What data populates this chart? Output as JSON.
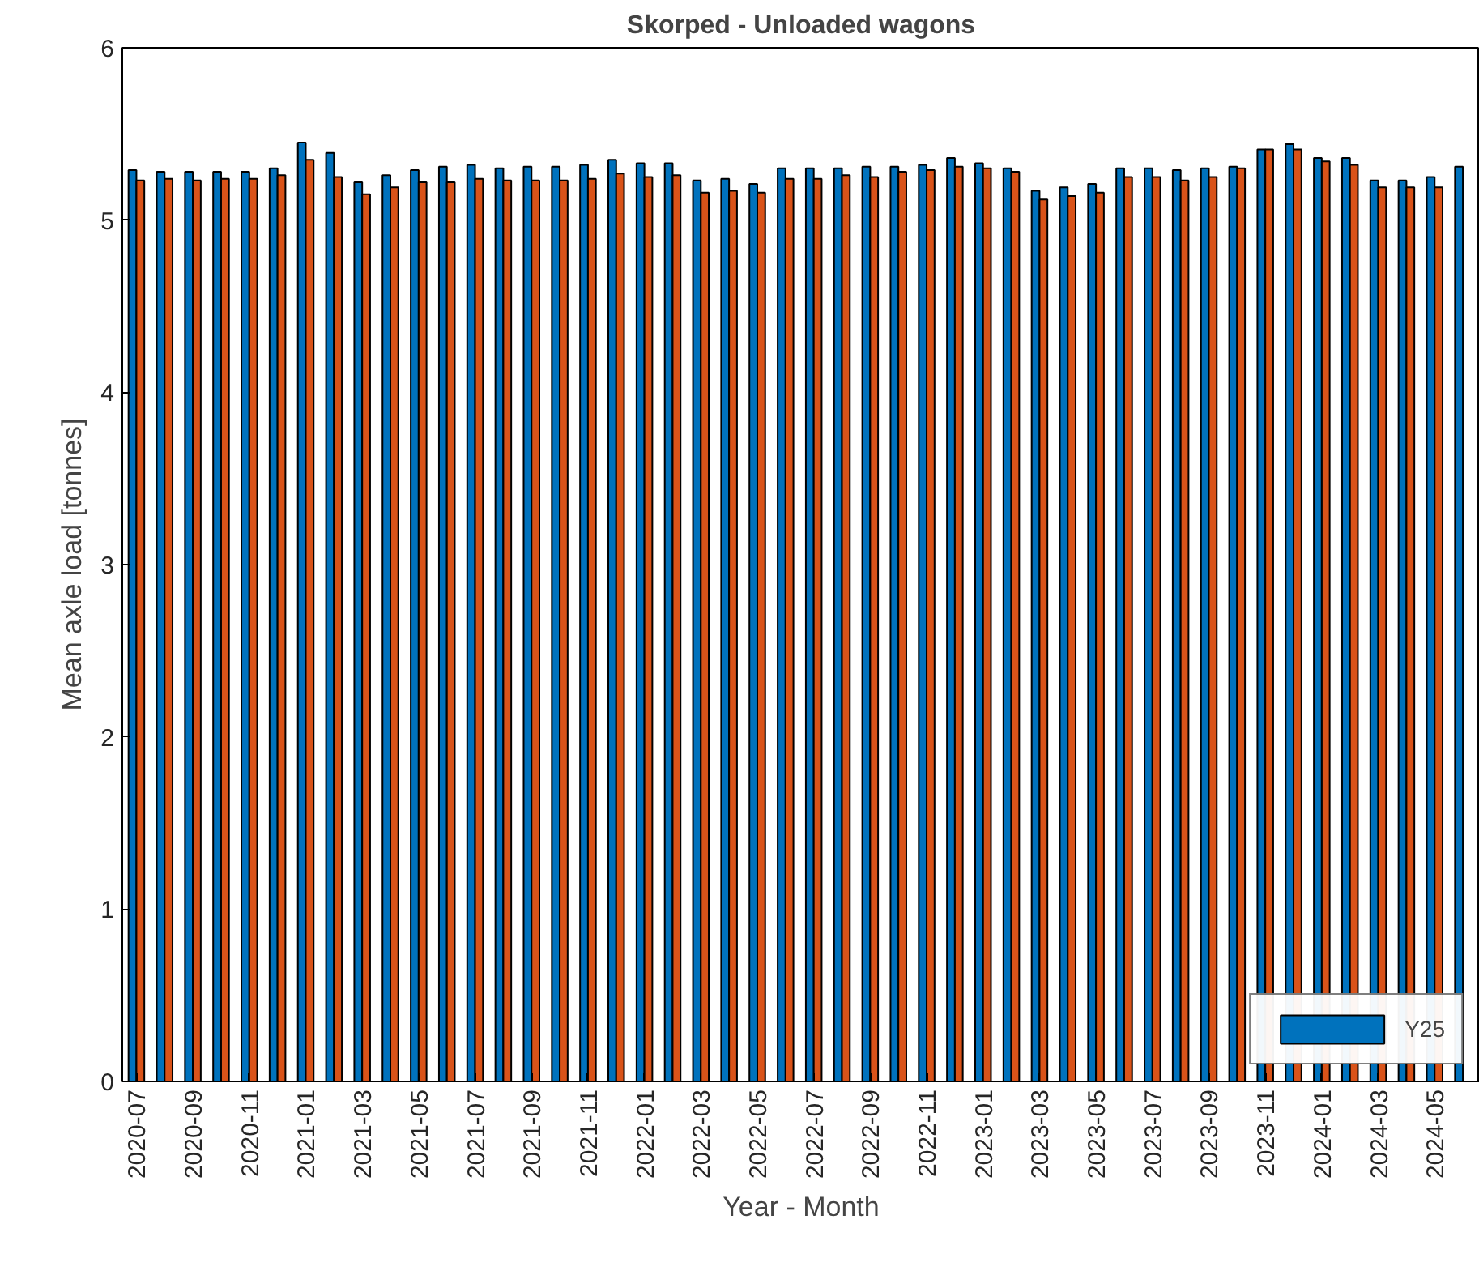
{
  "chart_data": {
    "type": "bar",
    "title": "Skorped - Unloaded wagons",
    "xlabel": "Year - Month",
    "ylabel": "Mean axle load [tonnes]",
    "categories": [
      "2020-07",
      null,
      "2020-09",
      null,
      "2020-11",
      null,
      "2021-01",
      null,
      "2021-03",
      null,
      "2021-05",
      null,
      "2021-07",
      null,
      "2021-09",
      null,
      "2021-11",
      null,
      "2022-01",
      null,
      "2022-03",
      null,
      "2022-05",
      null,
      "2022-07",
      null,
      "2022-09",
      null,
      "2022-11",
      null,
      "2023-01",
      null,
      "2023-03",
      null,
      "2023-05",
      null,
      "2023-07",
      null,
      "2023-09",
      null,
      "2023-11",
      null,
      "2024-01",
      null,
      "2024-03",
      null,
      "2024-05",
      null
    ],
    "series": [
      {
        "name": "Y25",
        "color": "#0072bd",
        "values": [
          5.29,
          5.28,
          5.28,
          5.28,
          5.28,
          5.3,
          5.45,
          5.39,
          5.22,
          5.26,
          5.29,
          5.31,
          5.32,
          5.3,
          5.31,
          5.31,
          5.32,
          5.35,
          5.33,
          5.33,
          5.23,
          5.24,
          5.21,
          5.3,
          5.3,
          5.3,
          5.31,
          5.31,
          5.32,
          5.36,
          5.33,
          5.3,
          5.17,
          5.19,
          5.21,
          5.3,
          5.3,
          5.29,
          5.3,
          5.31,
          5.41,
          5.44,
          5.36,
          5.36,
          5.23,
          5.23,
          5.25,
          5.31
        ]
      },
      {
        "color": "#d95319",
        "values": [
          5.23,
          5.24,
          5.23,
          5.24,
          5.24,
          5.26,
          5.35,
          5.25,
          5.15,
          5.19,
          5.22,
          5.22,
          5.24,
          5.23,
          5.23,
          5.23,
          5.24,
          5.27,
          5.25,
          5.26,
          5.16,
          5.17,
          5.16,
          5.24,
          5.24,
          5.26,
          5.25,
          5.28,
          5.29,
          5.31,
          5.3,
          5.28,
          5.12,
          5.14,
          5.16,
          5.25,
          5.25,
          5.23,
          5.25,
          5.3,
          5.41,
          5.41,
          5.34,
          5.32,
          5.19,
          5.19,
          5.19,
          null
        ]
      }
    ],
    "ylim": [
      0,
      6
    ],
    "yticks": [
      0,
      1,
      2,
      3,
      4,
      5,
      6
    ],
    "legend": "bottom right"
  }
}
